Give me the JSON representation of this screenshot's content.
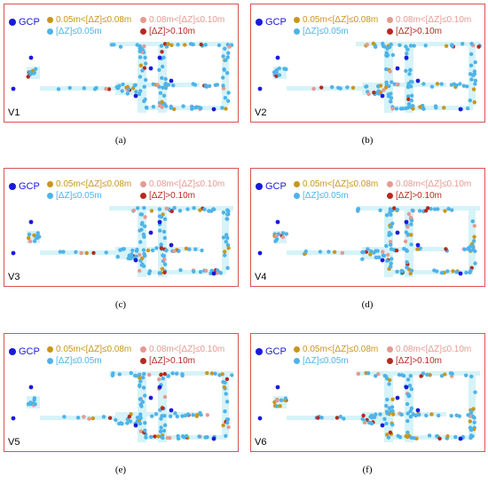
{
  "colors": {
    "frame": "#d9534f",
    "gcp": "#1a1adb",
    "band1": "#c9961a",
    "band2": "#e59a92",
    "small": "#4fb3e8",
    "large": "#b52a20",
    "strip": "#d5f3f8"
  },
  "legend": {
    "gcp": "GCP",
    "band1": "0.05m<[ΔZ]≤0.08m",
    "band2": "0.08m<[ΔZ]≤0.10m",
    "small": "[ΔZ]≤0.05m",
    "large": "[ΔZ]>0.10m"
  },
  "panels": [
    {
      "caption": "(a)",
      "label": "V1"
    },
    {
      "caption": "(b)",
      "label": "V2"
    },
    {
      "caption": "(c)",
      "label": "V3"
    },
    {
      "caption": "(d)",
      "label": "V4"
    },
    {
      "caption": "(e)",
      "label": "V5"
    },
    {
      "caption": "(f)",
      "label": "V6"
    }
  ]
}
